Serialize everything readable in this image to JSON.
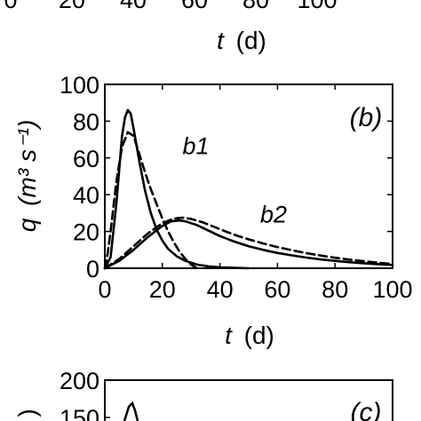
{
  "figure": {
    "top_panel_fragment": {
      "xticks": [
        "0",
        "20",
        "40",
        "60",
        "80",
        "100"
      ],
      "xlabel_var": "t",
      "xlabel_unit": "(d)"
    },
    "panel_c_fragment": {
      "yticks": [
        "200",
        "150"
      ],
      "panel_label": "(c)"
    }
  },
  "chart_data": {
    "type": "line",
    "panel_label": "(b)",
    "xlabel_var": "t",
    "xlabel_unit": "(d)",
    "ylabel_var": "q",
    "ylabel_unit": "(m³ s⁻¹)",
    "xlim": [
      0,
      100
    ],
    "ylim": [
      0,
      100
    ],
    "xticks": [
      0,
      20,
      40,
      60,
      80,
      100
    ],
    "yticks": [
      0,
      20,
      40,
      60,
      80,
      100
    ],
    "grid": false,
    "legend": "none",
    "annotations": [
      {
        "text": "b1",
        "x": 27,
        "y": 62
      },
      {
        "text": "b2",
        "x": 54,
        "y": 25
      }
    ],
    "series": [
      {
        "style": "solid",
        "x": [
          0,
          2,
          4,
          6,
          7,
          8,
          9,
          10,
          12,
          14,
          16,
          18,
          20,
          22,
          25,
          28,
          32,
          36,
          40,
          45,
          50
        ],
        "y": [
          0,
          6,
          35,
          72,
          82,
          86,
          84,
          76,
          58,
          42,
          30,
          21,
          15,
          10.5,
          6.5,
          4,
          2,
          1,
          0.5,
          0.2,
          0
        ]
      },
      {
        "style": "dashed",
        "x": [
          0,
          1,
          2,
          4,
          6,
          8,
          10,
          12,
          14,
          16,
          18,
          20,
          22,
          24,
          26,
          28,
          30,
          32
        ],
        "y": [
          0,
          8,
          20,
          47,
          66,
          74,
          72,
          62,
          52,
          43,
          35,
          27,
          20,
          14,
          9,
          5,
          2,
          0
        ]
      },
      {
        "style": "solid",
        "x": [
          0,
          5,
          10,
          15,
          20,
          23,
          26,
          28,
          32,
          36,
          40,
          45,
          50,
          55,
          60,
          65,
          70,
          75,
          80,
          85,
          90,
          95,
          100
        ],
        "y": [
          0,
          4,
          10,
          17,
          23,
          25.5,
          26,
          25.5,
          23.5,
          20.5,
          17.5,
          14.5,
          12,
          10,
          8.3,
          7,
          5.8,
          4.8,
          4,
          3.3,
          2.7,
          2.2,
          1.8
        ]
      },
      {
        "style": "dashed",
        "x": [
          0,
          5,
          10,
          15,
          20,
          24,
          27,
          30,
          34,
          38,
          42,
          46,
          50,
          55,
          60,
          65,
          70,
          75,
          80,
          85,
          90,
          95,
          100
        ],
        "y": [
          0,
          5,
          12,
          19,
          24.5,
          27,
          27.5,
          26.8,
          25,
          22.5,
          20,
          17.7,
          15.7,
          13.5,
          11.5,
          9.8,
          8.2,
          6.9,
          5.7,
          4.7,
          3.8,
          3.0,
          2.3
        ]
      }
    ]
  }
}
